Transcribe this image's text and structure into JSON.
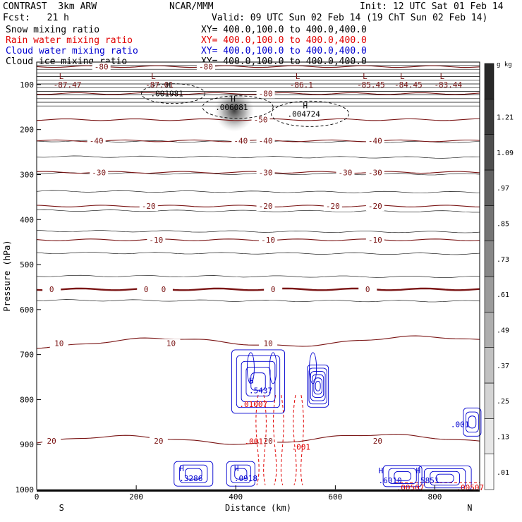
{
  "header": {
    "model": "CONTRAST  3km ARW",
    "center": "NCAR/MMM",
    "init": "Init: 12 UTC Sat 01 Feb 14",
    "fcst": "Fcst:   21 h",
    "valid": "Valid: 09 UTC Sun 02 Feb 14 (19 ChT Sun 02 Feb 14)"
  },
  "fields": [
    {
      "name": "Snow mixing ratio",
      "xy": "XY= 400.0,100.0 to 400.0,400.0",
      "color": "#000000"
    },
    {
      "name": "Rain water mixing ratio",
      "xy": "XY= 400.0,100.0 to 400.0,400.0",
      "color": "#e00000"
    },
    {
      "name": "Cloud water mixing ratio",
      "xy": "XY= 400.0,100.0 to 400.0,400.0",
      "color": "#0000d0"
    },
    {
      "name": "Cloud ice mixing ratio",
      "xy": "XY= 400.0,100.0 to 400.0,400.0",
      "color": "#000000"
    }
  ],
  "chart_data": {
    "type": "contour",
    "xlabel": "Distance (km)",
    "ylabel": "Pressure (hPa)",
    "xlim": [
      0,
      890
    ],
    "ylim": [
      1000,
      50
    ],
    "x_ticks": [
      0,
      200,
      400,
      600,
      800
    ],
    "y_ticks": [
      100,
      200,
      300,
      400,
      500,
      600,
      700,
      800,
      900,
      1000
    ],
    "x_end_labels": {
      "left": "S",
      "right": "N"
    },
    "temperature_contours": [
      {
        "value": -80,
        "p": 60,
        "labels": [
          {
            "x": 130,
            "text": "-80"
          },
          {
            "x": 340,
            "text": "-80"
          }
        ]
      },
      {
        "value": -80,
        "p": 120,
        "labels": [
          {
            "x": 460,
            "text": "-80"
          }
        ]
      },
      {
        "value": -50,
        "p": 178,
        "labels": [
          {
            "x": 450,
            "text": "-50"
          }
        ]
      },
      {
        "value": -40,
        "p": 225,
        "labels": [
          {
            "x": 120,
            "text": "-40"
          },
          {
            "x": 410,
            "text": "-40"
          },
          {
            "x": 460,
            "text": "-40"
          },
          {
            "x": 680,
            "text": "-40"
          }
        ]
      },
      {
        "value": -30,
        "p": 295,
        "labels": [
          {
            "x": 125,
            "text": "-30"
          },
          {
            "x": 460,
            "text": "-30"
          },
          {
            "x": 620,
            "text": "-30"
          },
          {
            "x": 680,
            "text": "-30"
          }
        ]
      },
      {
        "value": -20,
        "p": 370,
        "labels": [
          {
            "x": 225,
            "text": "-20"
          },
          {
            "x": 460,
            "text": "-20"
          },
          {
            "x": 595,
            "text": "-20"
          },
          {
            "x": 680,
            "text": "-20"
          }
        ]
      },
      {
        "value": -10,
        "p": 445,
        "labels": [
          {
            "x": 240,
            "text": "-10"
          },
          {
            "x": 465,
            "text": "-10"
          },
          {
            "x": 680,
            "text": "-10"
          }
        ]
      },
      {
        "value": 0,
        "p": 555,
        "labels": [
          {
            "x": 30,
            "text": "0"
          },
          {
            "x": 220,
            "text": "0"
          },
          {
            "x": 255,
            "text": "0"
          },
          {
            "x": 475,
            "text": "0"
          },
          {
            "x": 665,
            "text": "0"
          }
        ]
      },
      {
        "value": 10,
        "p": 675,
        "labels": [
          {
            "x": 45,
            "text": "10"
          },
          {
            "x": 270,
            "text": "10"
          },
          {
            "x": 465,
            "text": "10"
          }
        ]
      },
      {
        "value": 20,
        "p": 892,
        "labels": [
          {
            "x": 30,
            "text": "20"
          },
          {
            "x": 245,
            "text": "20"
          },
          {
            "x": 465,
            "text": "20"
          },
          {
            "x": 685,
            "text": "20"
          }
        ]
      }
    ],
    "snow_lows": [
      {
        "x": 25,
        "label": "-87.47"
      },
      {
        "x": 210,
        "label": "-87.01"
      },
      {
        "x": 500,
        "label": "-86.1"
      },
      {
        "x": 635,
        "label": "-85.45"
      },
      {
        "x": 710,
        "label": "-84.45"
      },
      {
        "x": 790,
        "label": "-83.44"
      }
    ],
    "ice_highs": [
      {
        "x": 260,
        "p": 120,
        "label": ".001981"
      },
      {
        "x": 390,
        "p": 150,
        "label": ".006081"
      },
      {
        "x": 535,
        "p": 165,
        "label": ".004724"
      }
    ],
    "cloud_water_highs": [
      {
        "x": 455,
        "p": 780,
        "label": ".5437"
      },
      {
        "x": 315,
        "p": 975,
        "label": ".3286"
      },
      {
        "x": 425,
        "p": 975,
        "label": ".0918"
      },
      {
        "x": 715,
        "p": 980,
        "label": ".6010"
      },
      {
        "x": 790,
        "p": 980,
        "label": ".5851"
      },
      {
        "x": 860,
        "p": 855,
        "label": ".001"
      }
    ],
    "rain_labels": [
      {
        "x": 430,
        "p": 810,
        "label": ".01007"
      },
      {
        "x": 440,
        "p": 893,
        "label": ".001"
      },
      {
        "x": 535,
        "p": 905,
        "label": ".001"
      },
      {
        "x": 745,
        "p": 995,
        "label": ".00507"
      },
      {
        "x": 865,
        "p": 995,
        "label": ".00507"
      }
    ],
    "colorbar": {
      "units": "g kg",
      "levels": [
        ".01",
        ".13",
        ".25",
        ".37",
        ".49",
        ".61",
        ".73",
        ".85",
        ".97",
        "1.09",
        "1.21"
      ]
    }
  }
}
